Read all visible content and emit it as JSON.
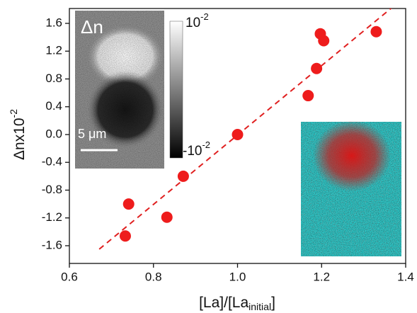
{
  "chart_data": {
    "type": "scatter",
    "x_label": {
      "main": "[La]/[La",
      "sub": "initial",
      "close": "]"
    },
    "y_label": {
      "main": "Δnx10",
      "sup": "-2"
    },
    "x": [
      0.733,
      0.741,
      0.832,
      0.871,
      1.0,
      1.168,
      1.188,
      1.197,
      1.205,
      1.33
    ],
    "values": [
      -1.46,
      -1.0,
      -1.19,
      -0.6,
      0.0,
      0.56,
      0.95,
      1.45,
      1.35,
      1.48
    ],
    "color": "#ee1c1c",
    "fit_line": {
      "x": [
        0.671,
        1.368
      ],
      "y": [
        -1.65,
        1.83
      ],
      "color": "#e02020",
      "dashed": true
    },
    "xlim": [
      0.6,
      1.4
    ],
    "ylim": [
      -1.855,
      1.814
    ],
    "xticks": [
      0.6,
      0.8,
      {
        "value": 1.0,
        "label": "1.0"
      },
      1.2,
      1.4
    ],
    "yticks": [
      -1.6,
      -1.2,
      -0.8,
      -0.4,
      {
        "value": 0,
        "label": "0.0"
      },
      0.4,
      0.8,
      1.2,
      1.6
    ],
    "insets": {
      "map_label": "Δn",
      "scale_bar": "5 μm",
      "colorbar_top": {
        "base": "10",
        "sup": "-2"
      },
      "colorbar_bottom": {
        "base": "-10",
        "sup": "-2"
      }
    }
  }
}
